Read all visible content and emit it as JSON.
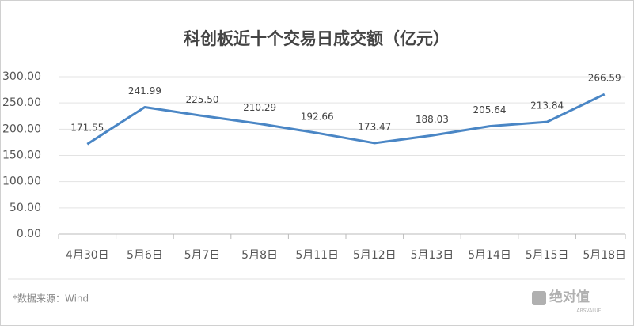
{
  "chart_data": {
    "type": "line",
    "title": "科创板近十个交易日成交额（亿元）",
    "categories": [
      "4月30日",
      "5月6日",
      "5月7日",
      "5月8日",
      "5月11日",
      "5月12日",
      "5月13日",
      "5月14日",
      "5月15日",
      "5月18日"
    ],
    "series": [
      {
        "name": "成交额",
        "color": "#4a86c5",
        "values": [
          171.55,
          241.99,
          225.5,
          210.29,
          192.66,
          173.47,
          188.03,
          205.64,
          213.84,
          266.59
        ],
        "value_labels": [
          "171.55",
          "241.99",
          "225.50",
          "210.29",
          "192.66",
          "173.47",
          "188.03",
          "205.64",
          "213.84",
          "266.59"
        ]
      }
    ],
    "ylim": [
      0,
      300
    ],
    "yticks": [
      {
        "value": 0,
        "label": "0.00"
      },
      {
        "value": 50,
        "label": "50.00"
      },
      {
        "value": 100,
        "label": "100.00"
      },
      {
        "value": 150,
        "label": "150.00"
      },
      {
        "value": 200,
        "label": "200.00"
      },
      {
        "value": 250,
        "label": "250.00"
      },
      {
        "value": 300,
        "label": "300.00"
      }
    ],
    "grid": true,
    "source": "*数据来源：Wind",
    "logo": "绝对值",
    "logo_sub": "ABSVALUE"
  }
}
